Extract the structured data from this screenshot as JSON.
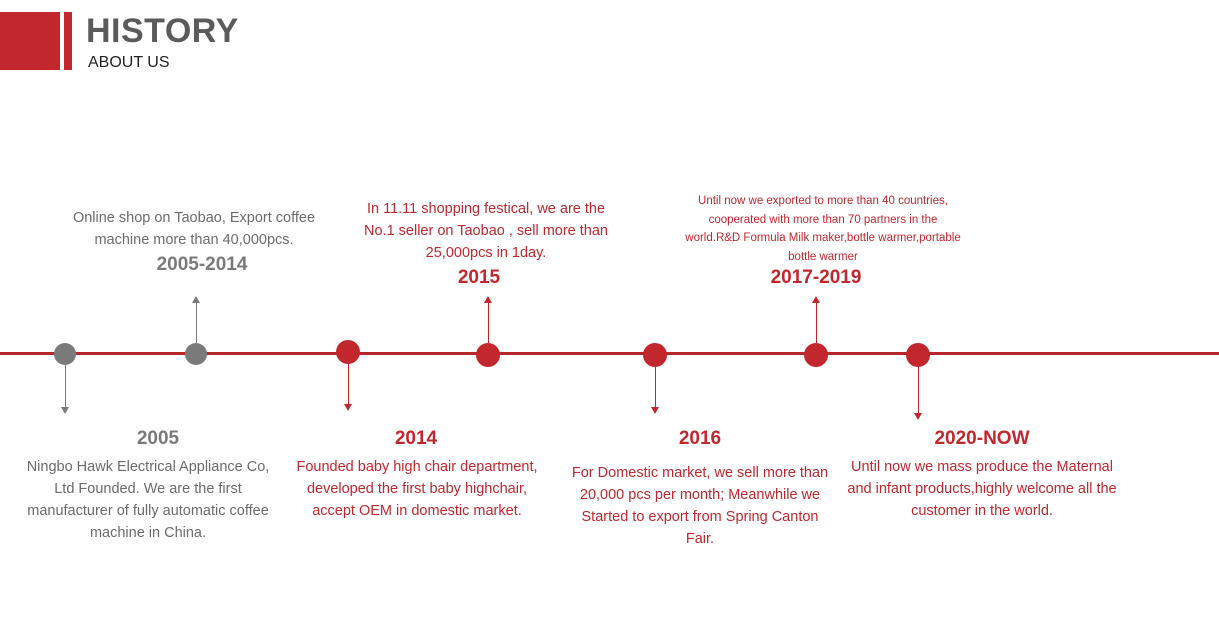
{
  "header": {
    "title": "HISTORY",
    "subtitle": "ABOUT US"
  },
  "colors": {
    "accent": "#c1272d",
    "gray": "#7a7a7a",
    "title_gray": "#5b5b5b"
  },
  "events": [
    {
      "year": "2005",
      "text": "Ningbo Hawk Electrical Appliance Co, Ltd Founded. We are the first manufacturer of fully automatic coffee machine in China."
    },
    {
      "year": "2005-2014",
      "text": "Online shop on Taobao, Export coffee machine more than 40,000pcs."
    },
    {
      "year": "2014",
      "text": "Founded baby high chair department, developed the first baby highchair, accept OEM in domestic market."
    },
    {
      "year": "2015",
      "text": "In 11.11 shopping festical, we are the No.1 seller on Taobao , sell more than 25,000pcs in 1day."
    },
    {
      "year": "2016",
      "text": "For Domestic market, we sell more than 20,000 pcs per month; Meanwhile we Started to export from Spring Canton Fair."
    },
    {
      "year": "2017-2019",
      "text": "Until now we exported to more than 40 countries, cooperated with more than 70 partners in the world.R&D Formula Milk maker,bottle warmer,portable bottle warmer"
    },
    {
      "year": "2020-NOW",
      "text": "Until now we mass produce the Maternal and infant products,highly welcome all the customer in the world."
    }
  ]
}
